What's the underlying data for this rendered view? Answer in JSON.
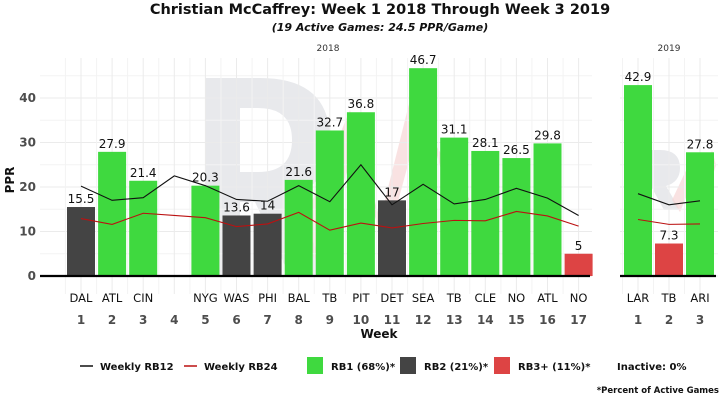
{
  "chart_data": {
    "type": "bar",
    "title": "Christian McCaffrey: Week 1 2018 Through Week 3 2019",
    "subtitle": "(19 Active Games: 24.5 PPR/Game)",
    "xlabel": "Week",
    "ylabel": "PPR",
    "ylim": [
      0,
      47
    ],
    "yticks": [
      0,
      10,
      20,
      30,
      40
    ],
    "grid": true,
    "legend_placement": "bottom",
    "colors": {
      "RB1": "#3fd93f",
      "RB2": "#444444",
      "RB3+": "#dd4444",
      "RB12": "#111111",
      "RB24": "#bb1111"
    },
    "panels": [
      {
        "label": "2018",
        "weeks": [
          1,
          2,
          3,
          4,
          5,
          6,
          7,
          8,
          9,
          10,
          11,
          12,
          13,
          14,
          15,
          16,
          17
        ],
        "opponents": [
          "DAL",
          "ATL",
          "CIN",
          "",
          "NYG",
          "WAS",
          "PHI",
          "BAL",
          "TB",
          "PIT",
          "DET",
          "SEA",
          "TB",
          "CLE",
          "NO",
          "ATL",
          "NO"
        ],
        "ppr": [
          15.5,
          27.9,
          21.4,
          null,
          20.3,
          13.6,
          14,
          21.6,
          32.7,
          36.8,
          17,
          46.7,
          31.1,
          28.1,
          26.5,
          29.8,
          5
        ],
        "labels": [
          "15.5",
          "27.9",
          "21.4",
          "",
          "20.3",
          "13.6",
          "14",
          "21.6",
          "32.7",
          "36.8",
          "17",
          "46.7",
          "31.1",
          "28.1",
          "26.5",
          "29.8",
          "5"
        ],
        "tier": [
          "RB2",
          "RB1",
          "RB1",
          null,
          "RB1",
          "RB2",
          "RB2",
          "RB1",
          "RB1",
          "RB1",
          "RB2",
          "RB1",
          "RB1",
          "RB1",
          "RB1",
          "RB1",
          "RB3+"
        ],
        "rb12": [
          20.2,
          17,
          17.6,
          22.5,
          20.3,
          17.2,
          16.8,
          20.3,
          16.7,
          25,
          16,
          20.6,
          16.2,
          17.2,
          19.7,
          17.5,
          13.6
        ],
        "rb24": [
          12.9,
          11.6,
          14.1,
          13.6,
          13.1,
          11.1,
          11.7,
          14.3,
          10.3,
          11.9,
          10.8,
          11.8,
          12.5,
          12.4,
          14.5,
          13.5,
          11.2
        ]
      },
      {
        "label": "2019",
        "weeks": [
          1,
          2,
          3
        ],
        "opponents": [
          "LAR",
          "TB",
          "ARI"
        ],
        "ppr": [
          42.9,
          7.3,
          27.8
        ],
        "labels": [
          "42.9",
          "7.3",
          "27.8"
        ],
        "tier": [
          "RB1",
          "RB3+",
          "RB1"
        ],
        "rb12": [
          18.5,
          16,
          16.9
        ],
        "rb24": [
          12.7,
          11.6,
          11.7
        ]
      }
    ],
    "legend": {
      "rb12": "Weekly RB12",
      "rb24": "Weekly RB24",
      "rb1": "RB1 (68%)*",
      "rb2": "RB2 (21%)*",
      "rb3": "RB3+ (11%)*",
      "inactive": "Inactive: 0%",
      "note": "*Percent of Active Games"
    }
  }
}
